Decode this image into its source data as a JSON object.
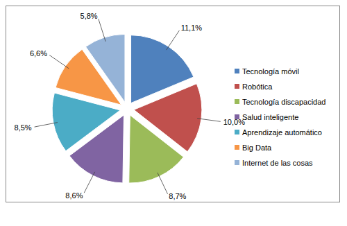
{
  "chart_data": {
    "type": "pie",
    "categories": [
      "Tecnología móvil",
      "Robótica",
      "Tecnología discapacidad",
      "Salud inteligente",
      "Aprendizaje automático",
      "Big Data",
      "Internet de las cosas"
    ],
    "values": [
      11.1,
      10.0,
      8.7,
      8.6,
      8.5,
      6.6,
      5.8
    ],
    "value_labels": [
      "11,1%",
      "10,0%",
      "8,7%",
      "8,6%",
      "8,5%",
      "6,6%",
      "5,8%"
    ],
    "colors": [
      "#4f81bd",
      "#c0504d",
      "#9bbb59",
      "#8064a2",
      "#4bacc6",
      "#f79646",
      "#95b3d7"
    ],
    "data_labels": true,
    "legend": "right"
  }
}
